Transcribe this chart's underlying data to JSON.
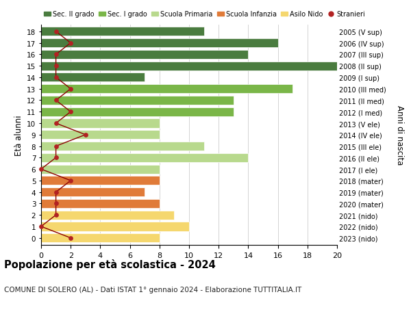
{
  "ages": [
    18,
    17,
    16,
    15,
    14,
    13,
    12,
    11,
    10,
    9,
    8,
    7,
    6,
    5,
    4,
    3,
    2,
    1,
    0
  ],
  "right_labels": [
    "2005 (V sup)",
    "2006 (IV sup)",
    "2007 (III sup)",
    "2008 (II sup)",
    "2009 (I sup)",
    "2010 (III med)",
    "2011 (II med)",
    "2012 (I med)",
    "2013 (V ele)",
    "2014 (IV ele)",
    "2015 (III ele)",
    "2016 (II ele)",
    "2017 (I ele)",
    "2018 (mater)",
    "2019 (mater)",
    "2020 (mater)",
    "2021 (nido)",
    "2022 (nido)",
    "2023 (nido)"
  ],
  "bar_values": [
    11,
    16,
    14,
    20,
    7,
    17,
    13,
    13,
    8,
    8,
    11,
    14,
    8,
    8,
    7,
    8,
    9,
    10,
    8
  ],
  "bar_colors": [
    "#4a7c3f",
    "#4a7c3f",
    "#4a7c3f",
    "#4a7c3f",
    "#4a7c3f",
    "#7ab648",
    "#7ab648",
    "#7ab648",
    "#b8d98d",
    "#b8d98d",
    "#b8d98d",
    "#b8d98d",
    "#b8d98d",
    "#e07b39",
    "#e07b39",
    "#e07b39",
    "#f5d76e",
    "#f5d76e",
    "#f5d76e"
  ],
  "stranieri_values": [
    1,
    2,
    1,
    1,
    1,
    2,
    1,
    2,
    1,
    3,
    1,
    1,
    0,
    2,
    1,
    1,
    1,
    0,
    2
  ],
  "stranieri_color": "#b22222",
  "stranieri_line_color": "#8b0000",
  "legend_labels": [
    "Sec. II grado",
    "Sec. I grado",
    "Scuola Primaria",
    "Scuola Infanzia",
    "Asilo Nido",
    "Stranieri"
  ],
  "legend_colors": [
    "#4a7c3f",
    "#7ab648",
    "#b8d98d",
    "#e07b39",
    "#f5d76e",
    "#b22222"
  ],
  "title": "Popolazione per età scolastica - 2024",
  "subtitle": "COMUNE DI SOLERO (AL) - Dati ISTAT 1° gennaio 2024 - Elaborazione TUTTITALIA.IT",
  "ylabel": "Età alunni",
  "right_ylabel": "Anni di nascita",
  "xlim": [
    0,
    20
  ],
  "background_color": "#ffffff",
  "grid_color": "#cccccc",
  "bar_height": 0.78
}
